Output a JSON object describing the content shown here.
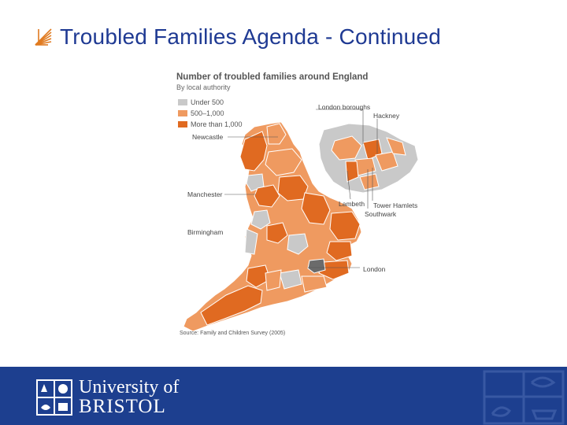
{
  "slide": {
    "title": "Troubled Families Agenda - Continued"
  },
  "figure": {
    "title": "Number of troubled families around England",
    "subtitle": "By local authority",
    "legend": [
      {
        "label": "Under 500",
        "color": "#c9c9c9"
      },
      {
        "label": "500–1,000",
        "color": "#ef9a60"
      },
      {
        "label": "More than 1,000",
        "color": "#e06a21"
      }
    ],
    "map_labels": {
      "newcastle": "Newcastle",
      "manchester": "Manchester",
      "birmingham": "Birmingham",
      "london": "London",
      "london_boroughs": "London boroughs",
      "hackney": "Hackney",
      "lambeth": "Lambeth",
      "tower_hamlets": "Tower Hamlets",
      "southwark": "Southwark"
    },
    "source": "Source: Family and Children Survey (2005)"
  },
  "footer": {
    "line1": "University of",
    "line2": "BRISTOL",
    "bar_color": "#1d3f8f"
  },
  "icons": {
    "title_bullet": "z-bullet-icon",
    "crest": "university-crest-icon"
  }
}
